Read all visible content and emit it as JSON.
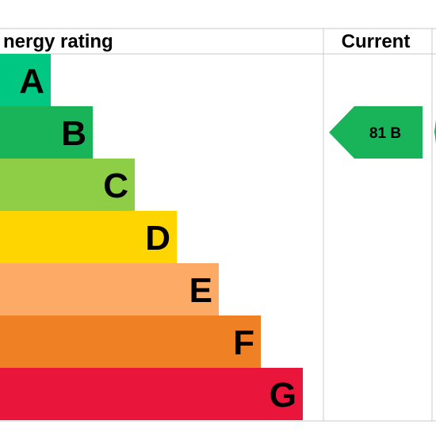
{
  "chart_data": {
    "type": "bar",
    "title": "Energy rating",
    "columns": [
      "Current"
    ],
    "bands": [
      {
        "letter": "A",
        "color": "#00c781"
      },
      {
        "letter": "B",
        "color": "#19b459"
      },
      {
        "letter": "C",
        "color": "#8dce46"
      },
      {
        "letter": "D",
        "color": "#ffd500"
      },
      {
        "letter": "E",
        "color": "#fcaa65"
      },
      {
        "letter": "F",
        "color": "#ef8023"
      },
      {
        "letter": "G",
        "color": "#e9153b"
      }
    ],
    "current": {
      "score": 81,
      "band": "B",
      "label": "81  B",
      "color": "#19b459"
    }
  },
  "header": {
    "title_visible": "nergy rating",
    "current_label": "Current"
  },
  "colors": {
    "grid": "#c8c8c8",
    "text": "#000000"
  }
}
